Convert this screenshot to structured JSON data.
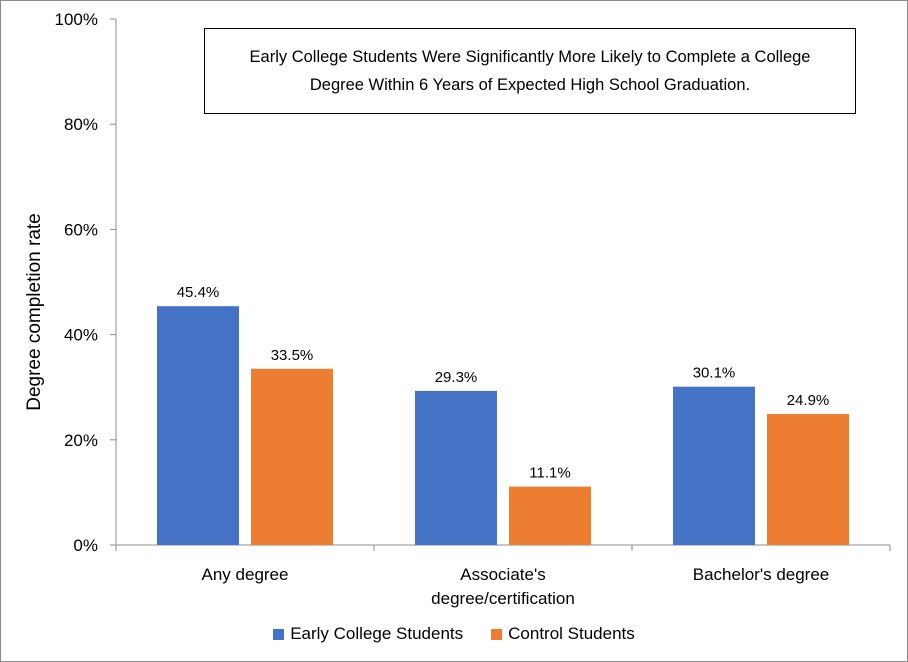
{
  "chart_data": {
    "type": "bar",
    "title": "Early College Students Were Significantly More Likely to Complete a College Degree Within 6 Years of Expected High School Graduation.",
    "ylabel": "Degree completion rate",
    "xlabel": "",
    "ylim": [
      0,
      100
    ],
    "yticks": [
      "0%",
      "20%",
      "40%",
      "60%",
      "80%",
      "100%"
    ],
    "categories": [
      "Any degree",
      [
        "Associate's",
        "degree/certification"
      ],
      "Bachelor's degree"
    ],
    "series": [
      {
        "name": "Early College Students",
        "color": "#4472c4",
        "values": [
          45.4,
          29.3,
          30.1
        ],
        "labels": [
          "45.4%",
          "29.3%",
          "30.1%"
        ]
      },
      {
        "name": "Control Students",
        "color": "#ed7d31",
        "values": [
          33.5,
          11.1,
          24.9
        ],
        "labels": [
          "33.5%",
          "11.1%",
          "24.9%"
        ]
      }
    ],
    "legend_position": "bottom",
    "grid": false
  }
}
